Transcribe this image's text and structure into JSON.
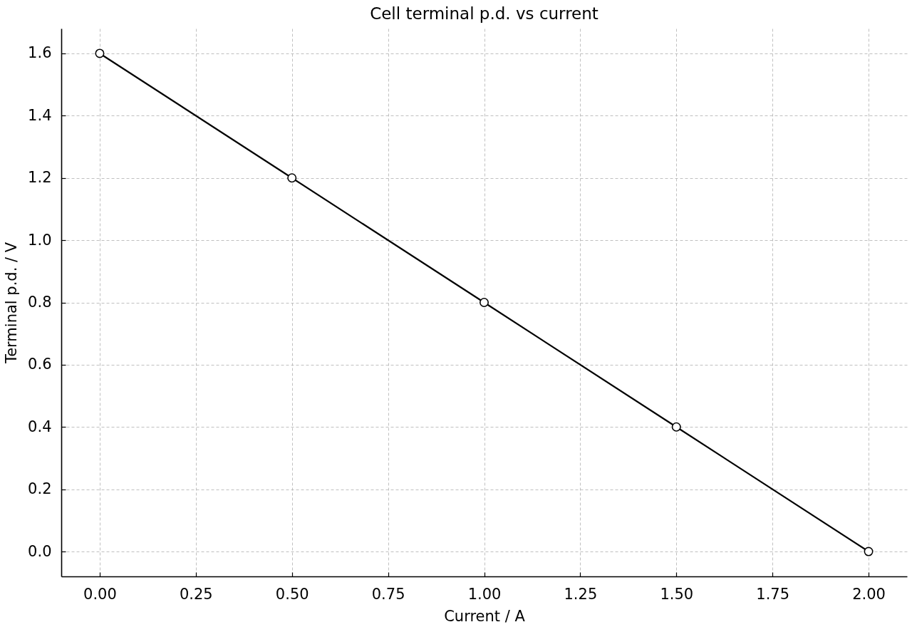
{
  "chart_data": {
    "type": "line",
    "title": "Cell terminal p.d. vs current",
    "xlabel": "Current / A",
    "ylabel": "Terminal p.d. / V",
    "x": [
      0,
      0.5,
      1.0,
      1.5,
      2.0
    ],
    "series": [
      {
        "color": "#000000",
        "values": [
          1.6,
          1.2,
          0.8,
          0.4,
          0.0
        ]
      }
    ],
    "xlim": [
      -0.1,
      2.1
    ],
    "ylim": [
      -0.08,
      1.68
    ],
    "xticks": [
      {
        "value": 0,
        "label": "0.00"
      },
      {
        "value": 0.25,
        "label": "0.25"
      },
      {
        "value": 0.5,
        "label": "0.50"
      },
      {
        "value": 0.75,
        "label": "0.75"
      },
      {
        "value": 1.0,
        "label": "1.00"
      },
      {
        "value": 1.25,
        "label": "1.25"
      },
      {
        "value": 1.5,
        "label": "1.50"
      },
      {
        "value": 1.75,
        "label": "1.75"
      },
      {
        "value": 2.0,
        "label": "2.00"
      }
    ],
    "yticks": [
      {
        "value": 0,
        "label": "0.0"
      },
      0.2,
      0.4,
      0.6,
      0.8,
      {
        "value": 1.0,
        "label": "1.0"
      },
      1.2,
      1.4,
      1.6
    ],
    "grid": true,
    "marker": "circle",
    "line_style": "solid"
  }
}
